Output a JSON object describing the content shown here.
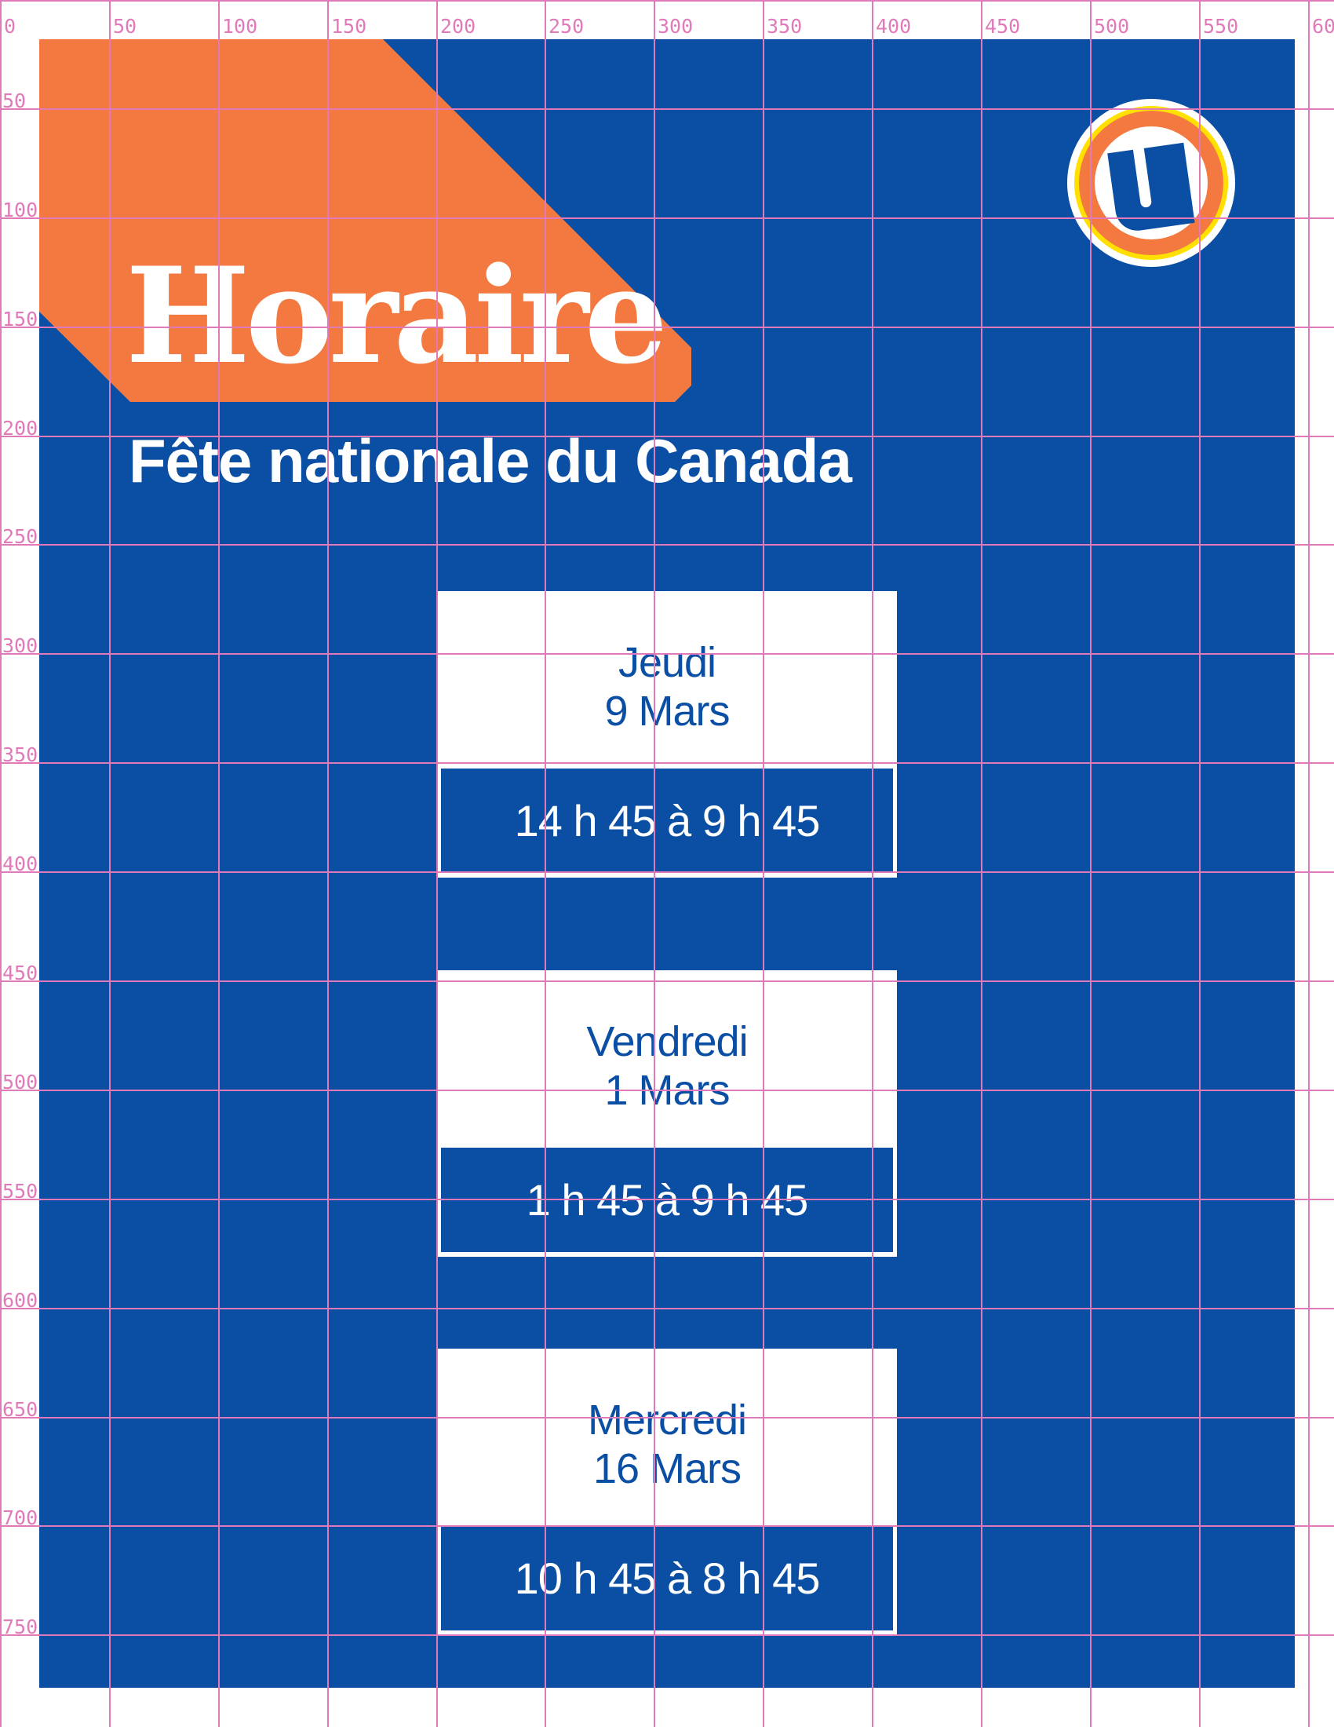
{
  "colors": {
    "blue": "#0a4fa3",
    "orange": "#f37940",
    "yellow": "#ffe000",
    "grid": "#e07ab8"
  },
  "header": {
    "title": "Horaire",
    "subtitle": "Fête nationale du Canada"
  },
  "logo": {
    "icon": "u-logo-icon"
  },
  "schedule": [
    {
      "day": "Jeudi",
      "date": "9 Mars",
      "hours": "14 h 45 à 9 h 45"
    },
    {
      "day": "Vendredi",
      "date": "1 Mars",
      "hours": "1 h 45 à 9 h 45"
    },
    {
      "day": "Mercredi",
      "date": "16 Mars",
      "hours": "10 h 45 à 8 h 45"
    }
  ],
  "grid_overlay": {
    "x_labels": [
      "0",
      "50",
      "100",
      "150",
      "200",
      "250",
      "300",
      "350",
      "400",
      "450",
      "500",
      "550",
      "60"
    ],
    "y_labels": [
      "50",
      "100",
      "150",
      "200",
      "250",
      "300",
      "350",
      "400",
      "450",
      "500",
      "550",
      "600",
      "650",
      "700",
      "750"
    ]
  }
}
